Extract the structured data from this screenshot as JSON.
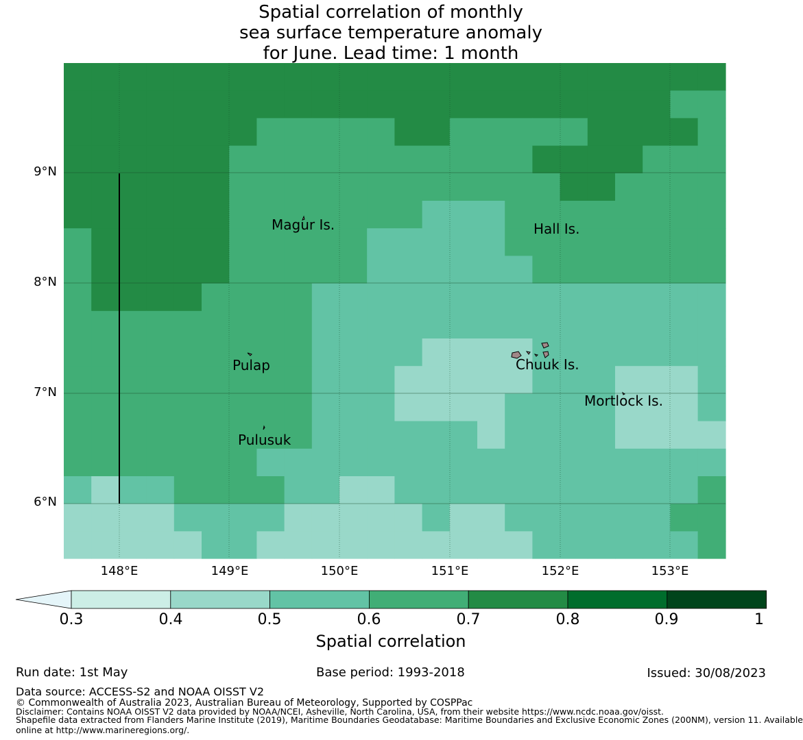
{
  "title": {
    "line1": "Spatial correlation of monthly",
    "line2": "sea surface temperature anomaly",
    "line3": "for June. Lead time: 1 month"
  },
  "map": {
    "lat_labels": [
      "9°N",
      "8°N",
      "7°N",
      "6°N"
    ],
    "lon_labels": [
      "148°E",
      "149°E",
      "150°E",
      "151°E",
      "152°E",
      "153°E"
    ],
    "extent": {
      "lon_min": 147.5,
      "lon_max": 153.5,
      "lat_min": 5.5,
      "lat_max": 10.0
    },
    "places": [
      {
        "name": "Magur Is.",
        "lon": 149.68,
        "lat": 8.53
      },
      {
        "name": "Hall Is.",
        "lon": 151.98,
        "lat": 8.49
      },
      {
        "name": "Pulap",
        "lon": 149.21,
        "lat": 7.25
      },
      {
        "name": "Chuuk Is.",
        "lon": 151.87,
        "lat": 7.26
      },
      {
        "name": "Mortlock Is.",
        "lon": 152.59,
        "lat": 6.94
      },
      {
        "name": "Pulusuk",
        "lon": 149.33,
        "lat": 6.58
      }
    ],
    "cell_colors": {
      "0.3": "#cceee6",
      "0.4": "#99d8c9",
      "0.5": "#62c3a5",
      "0.6": "#41ae76",
      "0.7": "#238b45",
      "0.8": "#006d2c",
      "0.9": "#00441b",
      "below": "#e5f5f9"
    }
  },
  "colorbar": {
    "ticks": [
      "0.3",
      "0.4",
      "0.5",
      "0.6",
      "0.7",
      "0.8",
      "0.9",
      "1"
    ],
    "colors": [
      "#cceee6",
      "#99d8c9",
      "#62c3a5",
      "#41ae76",
      "#238b45",
      "#006d2c",
      "#00441b"
    ],
    "extend_color": "#e5f5f9",
    "label": "Spatial correlation"
  },
  "footer": {
    "run_date": "Run date: 1st May",
    "base_period": "Base period: 1993-2018",
    "issued": "Issued: 30/08/2023",
    "data_source": "Data source: ACCESS-S2 and NOAA OISST V2",
    "copyright": "© Commonwealth of Australia 2023, Australian Bureau of Meteorology, Supported by COSPPac",
    "disclaimer": "Disclaimer: Contains NOAA OISST V2 data provided by NOAA/NCEI, Asheville, North Carolina, USA, from their website https://www.ncdc.noaa.gov/oisst.",
    "shapefile_line1": "Shapefile data extracted from Flanders Marine Institute (2019), Maritime Boundaries Geodatabase: Maritime Boundaries and Exclusive Economic Zones (200NM), version 11. Available",
    "shapefile_line2": "online at http://www.marineregions.org/."
  }
}
